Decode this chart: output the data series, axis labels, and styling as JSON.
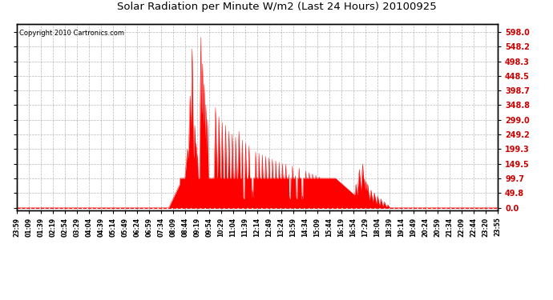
{
  "title": "Solar Radiation per Minute W/m2 (Last 24 Hours) 20100925",
  "copyright": "Copyright 2010 Cartronics.com",
  "fill_color": "#FF0000",
  "line_color": "#FF0000",
  "background_color": "#FFFFFF",
  "plot_bg_color": "#FFFFFF",
  "grid_color": "#888888",
  "dashed_line_color": "#FF0000",
  "yticks": [
    0.0,
    49.8,
    99.7,
    149.5,
    199.3,
    249.2,
    299.0,
    348.8,
    398.7,
    448.5,
    498.3,
    548.2,
    598.0
  ],
  "ymax": 625,
  "ymin": -8,
  "x_labels": [
    "23:59",
    "01:09",
    "01:39",
    "02:19",
    "02:54",
    "03:29",
    "04:04",
    "04:39",
    "05:14",
    "05:49",
    "06:24",
    "06:59",
    "07:34",
    "08:09",
    "08:44",
    "09:19",
    "09:54",
    "10:29",
    "11:04",
    "11:39",
    "12:14",
    "12:49",
    "13:24",
    "13:59",
    "14:34",
    "15:09",
    "15:44",
    "16:19",
    "16:54",
    "17:29",
    "18:04",
    "18:39",
    "19:14",
    "19:49",
    "20:24",
    "20:59",
    "21:34",
    "22:09",
    "22:44",
    "23:20",
    "23:55"
  ]
}
